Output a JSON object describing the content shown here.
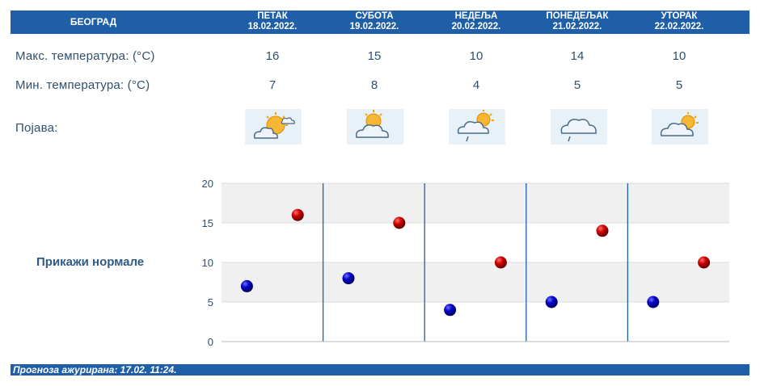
{
  "header": {
    "city": "БЕОГРАД",
    "days": [
      {
        "name": "ПЕТАК",
        "date": "18.02.2022."
      },
      {
        "name": "СУБОТА",
        "date": "19.02.2022."
      },
      {
        "name": "НЕДЕЉА",
        "date": "20.02.2022."
      },
      {
        "name": "ПОНЕДЕЉАК",
        "date": "21.02.2022."
      },
      {
        "name": "УТОРАК",
        "date": "22.02.2022."
      }
    ]
  },
  "rows": {
    "max_label": "Макс. температура: (°C)",
    "min_label": "Мин. температура: (°C)",
    "phenomenon_label": "Појава:"
  },
  "max_temps": [
    "16",
    "15",
    "10",
    "14",
    "10"
  ],
  "min_temps": [
    "7",
    "8",
    "4",
    "5",
    "5"
  ],
  "icons": [
    "sun-cloud-icon",
    "sun-cloud-icon",
    "cloud-sun-drizzle-icon",
    "cloud-drizzle-icon",
    "cloud-sun-icon"
  ],
  "normals_link": "Прикажи нормале",
  "footer": {
    "updated": "Прогноза ажурирана:  17.02. 11:24."
  },
  "colors": {
    "header_bg": "#1f5fa8",
    "max_marker": "#c00000",
    "min_marker": "#0a0aa8",
    "label_text": "#2f4f6f",
    "grid_band": "#f0f0f0"
  },
  "chart_data": {
    "type": "scatter",
    "title": "",
    "xlabel": "",
    "ylabel": "",
    "ylim": [
      0,
      20
    ],
    "yticks": [
      "0",
      "5",
      "10",
      "15",
      "20"
    ],
    "categories": [
      "18.02.2022.",
      "19.02.2022.",
      "20.02.2022.",
      "21.02.2022.",
      "22.02.2022."
    ],
    "series": [
      {
        "name": "Мин. температура",
        "values": [
          7,
          8,
          4,
          5,
          5
        ],
        "color": "#0a0aa8"
      },
      {
        "name": "Макс. температура",
        "values": [
          16,
          15,
          10,
          14,
          10
        ],
        "color": "#c00000"
      }
    ]
  }
}
